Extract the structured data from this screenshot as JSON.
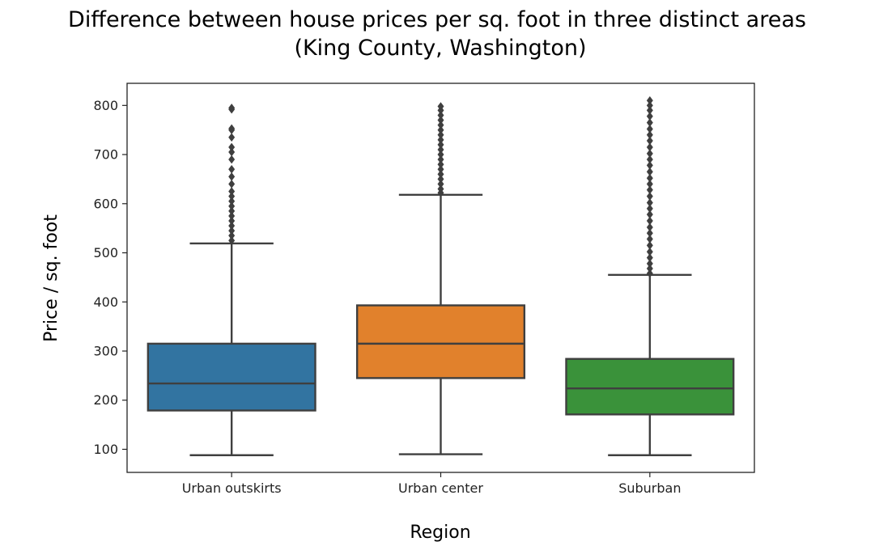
{
  "chart_data": {
    "type": "box",
    "title": "Difference between house prices per sq. foot in three distinct areas",
    "subtitle": "(King County, Washington)",
    "xlabel": "Region",
    "ylabel": "Price / sq. foot",
    "ylim": [
      53,
      845
    ],
    "yticks": [
      100,
      200,
      300,
      400,
      500,
      600,
      700,
      800
    ],
    "grid": false,
    "categories": [
      "Urban outskirts",
      "Urban center",
      "Suburban"
    ],
    "boxes": [
      {
        "category": "Urban outskirts",
        "color": "#3274a1",
        "whisker_low": 88,
        "q1": 179,
        "median": 234,
        "q3": 315,
        "whisker_high": 519,
        "outliers": [
          525,
          535,
          545,
          555,
          565,
          575,
          585,
          595,
          605,
          615,
          625,
          640,
          655,
          670,
          690,
          705,
          715,
          735,
          750,
          753,
          792,
          795
        ]
      },
      {
        "category": "Urban center",
        "color": "#e1812c",
        "whisker_low": 90,
        "q1": 245,
        "median": 315,
        "q3": 393,
        "whisker_high": 618,
        "outliers": [
          622,
          630,
          640,
          650,
          660,
          670,
          680,
          690,
          700,
          710,
          720,
          730,
          740,
          750,
          760,
          770,
          780,
          790,
          798
        ]
      },
      {
        "category": "Suburban",
        "color": "#3a923a",
        "whisker_low": 88,
        "q1": 171,
        "median": 224,
        "q3": 284,
        "whisker_high": 455,
        "outliers": [
          458,
          468,
          478,
          490,
          502,
          515,
          528,
          540,
          552,
          565,
          578,
          590,
          602,
          615,
          628,
          640,
          652,
          665,
          678,
          690,
          702,
          715,
          728,
          740,
          752,
          765,
          778,
          790,
          800,
          810
        ]
      }
    ]
  }
}
